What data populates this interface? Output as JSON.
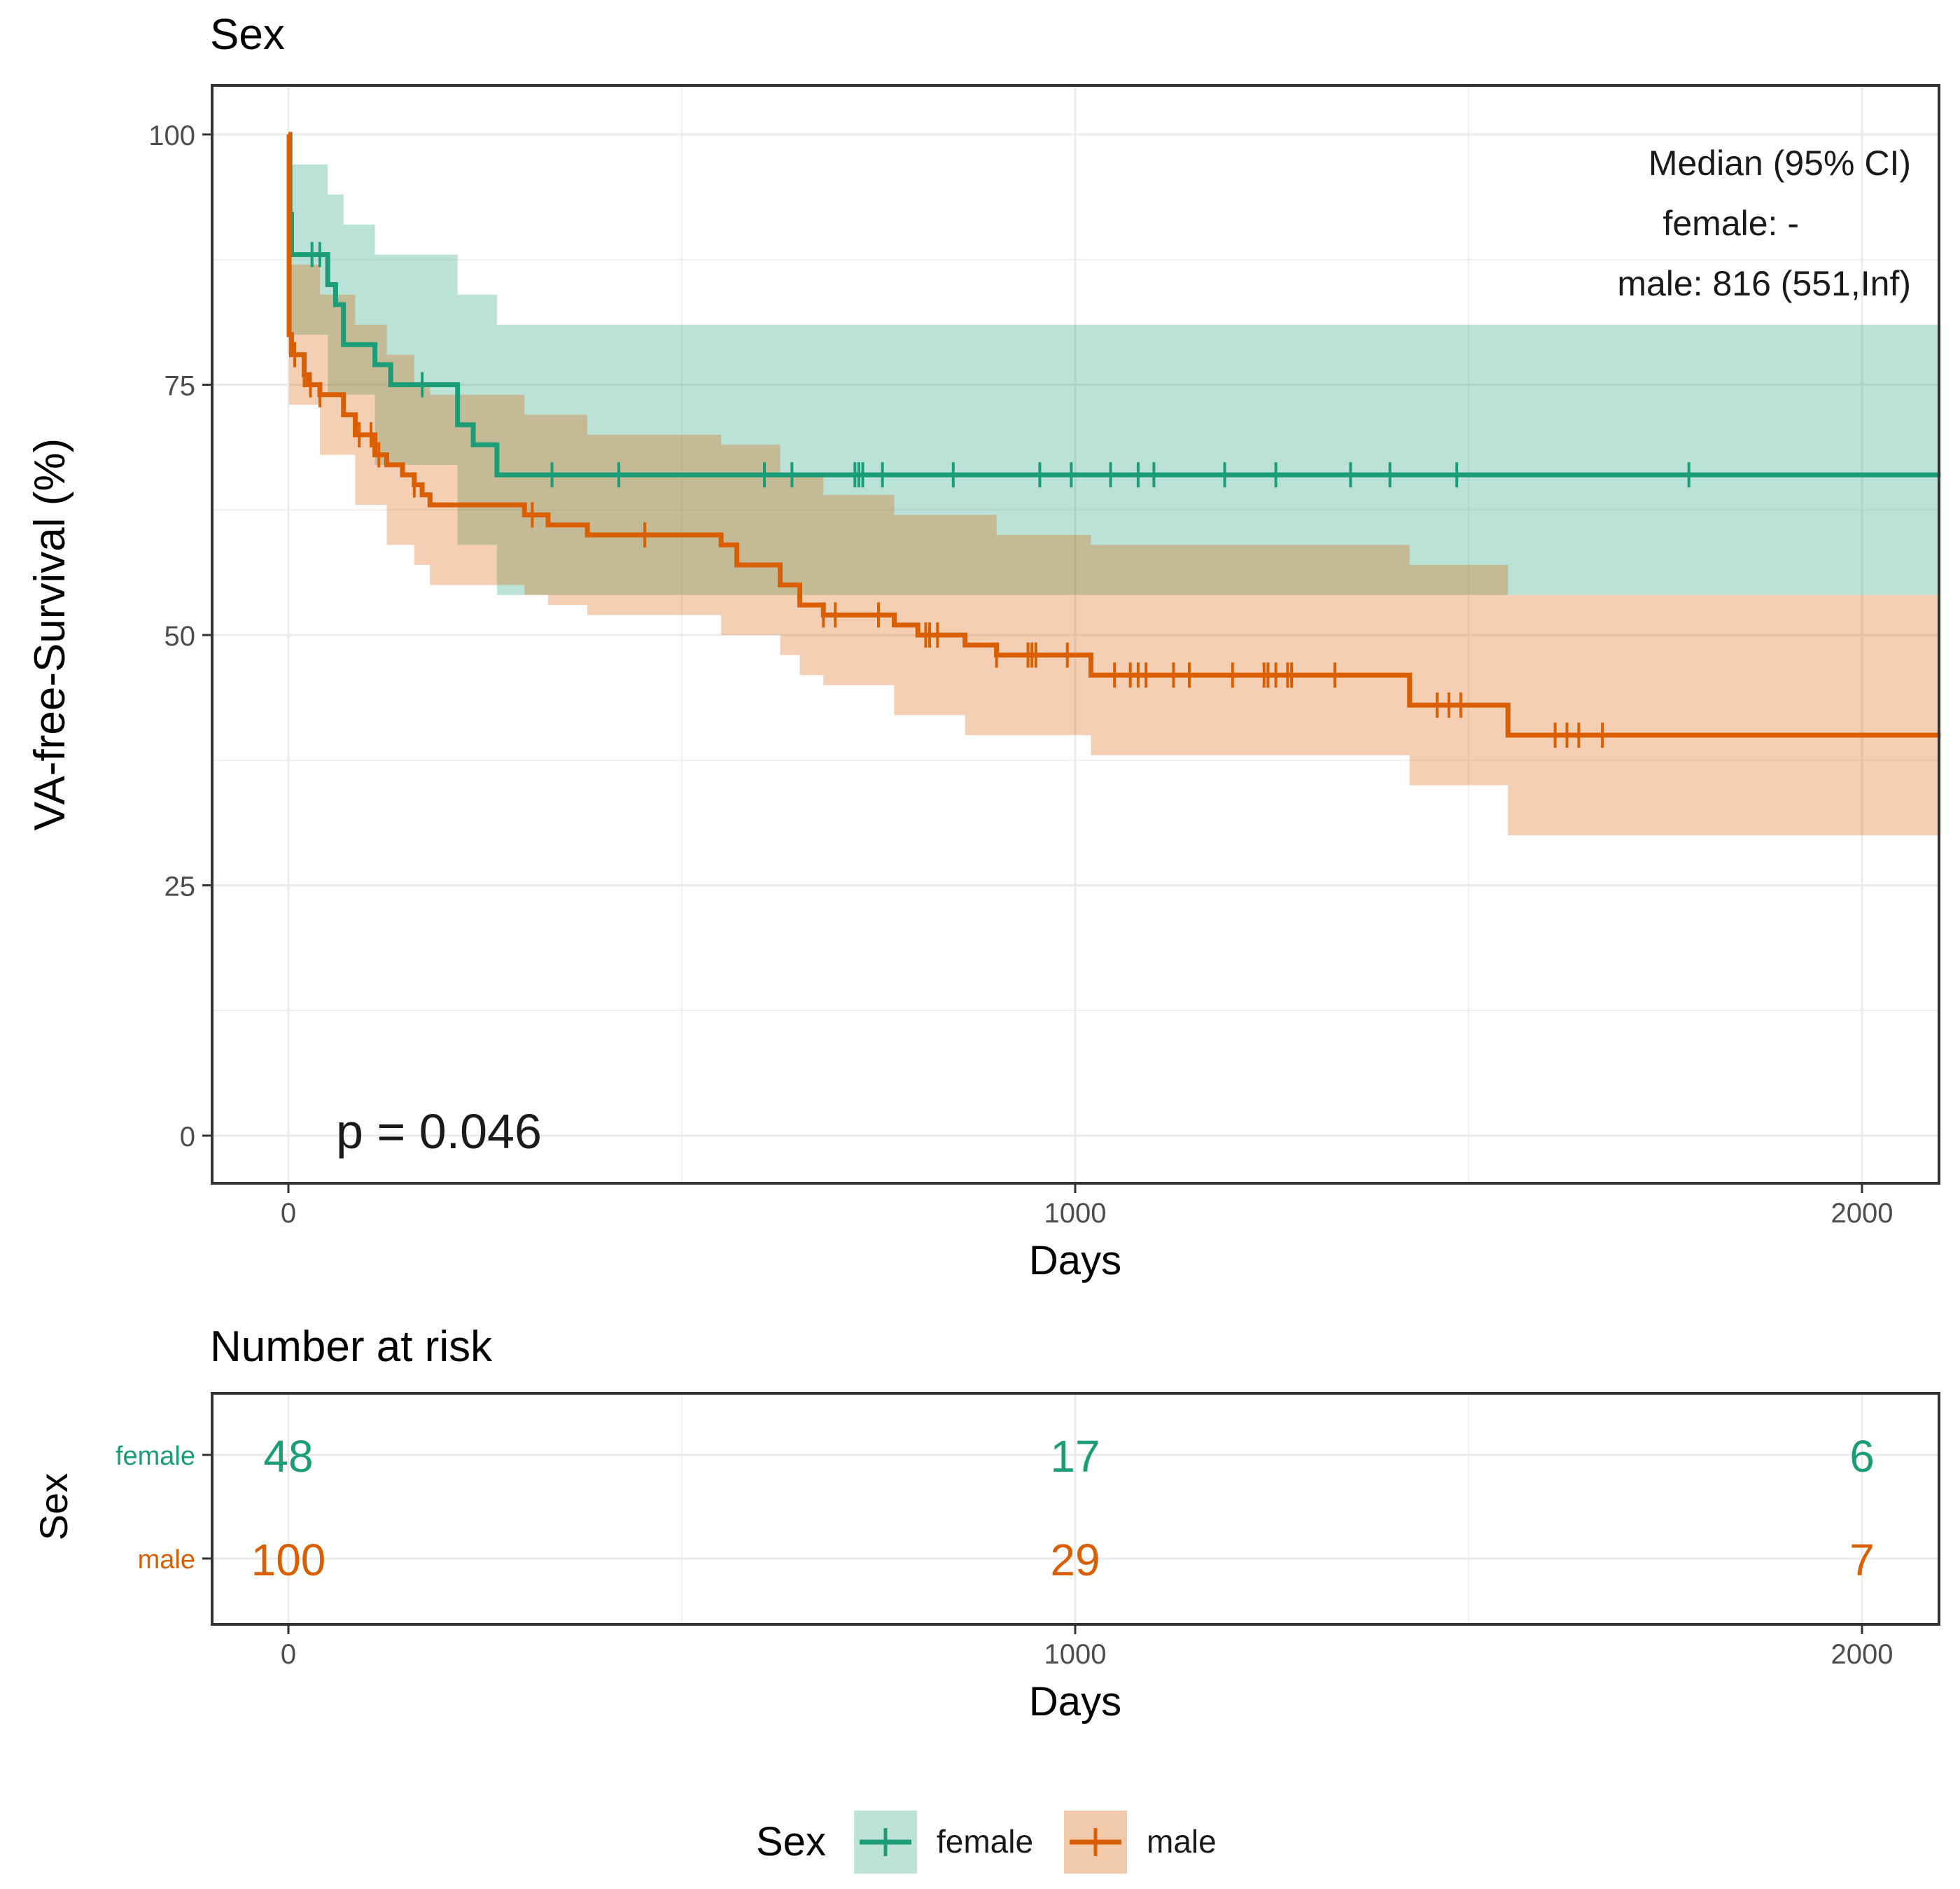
{
  "colors": {
    "female": "#1b9e77",
    "male": "#d95f02",
    "female_band": "#bde3d7",
    "male_band": "#f1c9ab",
    "overlap_band": "#c8b796",
    "grid": "#ebebeb",
    "panel_border": "#333333",
    "axis_text": "#4d4d4d"
  },
  "chart_data": [
    {
      "type": "line",
      "subtype": "kaplan-meier",
      "title": "Sex",
      "xlabel": "Days",
      "ylabel": "VA-free-Survival (%)",
      "xlim": [
        -100,
        2100
      ],
      "ylim": [
        -5,
        105
      ],
      "x_ticks": [
        0,
        1000,
        2000
      ],
      "y_ticks": [
        0,
        25,
        50,
        75,
        100
      ],
      "grid": true,
      "annotation": {
        "heading": "Median (95% CI)",
        "lines": [
          "female: -",
          "male: 816 (551,Inf)"
        ]
      },
      "pvalue": "p = 0.046",
      "series": [
        {
          "name": "female",
          "color_key": "female",
          "steps": [
            [
              0,
              100
            ],
            [
              2,
              92
            ],
            [
              4,
              88
            ],
            [
              50,
              85
            ],
            [
              60,
              83
            ],
            [
              70,
              79
            ],
            [
              110,
              77
            ],
            [
              130,
              75
            ],
            [
              215,
              71
            ],
            [
              235,
              69
            ],
            [
              265,
              66
            ],
            [
              2100,
              66
            ]
          ],
          "ci_upper": [
            [
              0,
              100
            ],
            [
              2,
              97
            ],
            [
              50,
              94
            ],
            [
              70,
              91
            ],
            [
              110,
              88
            ],
            [
              215,
              84
            ],
            [
              265,
              81
            ],
            [
              2100,
              81
            ]
          ],
          "ci_lower": [
            [
              0,
              80
            ],
            [
              50,
              74
            ],
            [
              110,
              67
            ],
            [
              215,
              59
            ],
            [
              265,
              54
            ],
            [
              1550,
              54
            ],
            [
              2100,
              54
            ]
          ],
          "censor_times": [
            30,
            40,
            170,
            335,
            420,
            605,
            640,
            720,
            725,
            730,
            755,
            845,
            955,
            995,
            1045,
            1080,
            1100,
            1190,
            1255,
            1350,
            1400,
            1485,
            1780
          ]
        },
        {
          "name": "male",
          "color_key": "male",
          "steps": [
            [
              0,
              100
            ],
            [
              1,
              80
            ],
            [
              4,
              78
            ],
            [
              20,
              76
            ],
            [
              25,
              75
            ],
            [
              40,
              74
            ],
            [
              70,
              72
            ],
            [
              85,
              70
            ],
            [
              110,
              68
            ],
            [
              125,
              67
            ],
            [
              145,
              66
            ],
            [
              160,
              65
            ],
            [
              170,
              64
            ],
            [
              180,
              63
            ],
            [
              300,
              62
            ],
            [
              330,
              61
            ],
            [
              380,
              60
            ],
            [
              550,
              59
            ],
            [
              570,
              57
            ],
            [
              625,
              55
            ],
            [
              650,
              53
            ],
            [
              680,
              52
            ],
            [
              770,
              51
            ],
            [
              800,
              50
            ],
            [
              860,
              49
            ],
            [
              900,
              48
            ],
            [
              1020,
              46
            ],
            [
              1425,
              43
            ],
            [
              1550,
              40
            ],
            [
              2100,
              40
            ]
          ],
          "ci_upper": [
            [
              0,
              100
            ],
            [
              1,
              87
            ],
            [
              40,
              84
            ],
            [
              85,
              81
            ],
            [
              125,
              78
            ],
            [
              160,
              75
            ],
            [
              180,
              74
            ],
            [
              300,
              72
            ],
            [
              380,
              70
            ],
            [
              550,
              69
            ],
            [
              625,
              66
            ],
            [
              680,
              64
            ],
            [
              770,
              62
            ],
            [
              900,
              60
            ],
            [
              1020,
              59
            ],
            [
              1425,
              57
            ],
            [
              1550,
              54
            ],
            [
              2100,
              54
            ]
          ],
          "ci_lower": [
            [
              0,
              78
            ],
            [
              1,
              73
            ],
            [
              40,
              68
            ],
            [
              85,
              63
            ],
            [
              125,
              59
            ],
            [
              160,
              57
            ],
            [
              180,
              55
            ],
            [
              300,
              54
            ],
            [
              330,
              53
            ],
            [
              380,
              52
            ],
            [
              550,
              50
            ],
            [
              625,
              48
            ],
            [
              650,
              46
            ],
            [
              680,
              45
            ],
            [
              770,
              42
            ],
            [
              860,
              40
            ],
            [
              1020,
              38
            ],
            [
              1425,
              35
            ],
            [
              1550,
              30
            ],
            [
              2100,
              30
            ]
          ],
          "censor_times": [
            8,
            20,
            28,
            40,
            90,
            105,
            115,
            160,
            310,
            453,
            680,
            695,
            750,
            810,
            815,
            825,
            900,
            940,
            945,
            950,
            990,
            1050,
            1070,
            1080,
            1090,
            1125,
            1145,
            1200,
            1240,
            1245,
            1255,
            1270,
            1275,
            1330,
            1460,
            1475,
            1490,
            1610,
            1625,
            1640,
            1670
          ]
        }
      ]
    },
    {
      "type": "table",
      "title": "Number at risk",
      "xlabel": "Days",
      "ylabel": "Sex",
      "x_ticks": [
        0,
        1000,
        2000
      ],
      "rows": [
        {
          "name": "female",
          "color_key": "female",
          "x": [
            0,
            1000,
            2000
          ],
          "values": [
            "48",
            "17",
            "6"
          ]
        },
        {
          "name": "male",
          "color_key": "male",
          "x": [
            0,
            1000,
            2000
          ],
          "values": [
            "100",
            "29",
            "7"
          ]
        }
      ]
    }
  ],
  "legend": {
    "title": "Sex",
    "items": [
      {
        "label": "female",
        "color_key": "female",
        "band_key": "female_band"
      },
      {
        "label": "male",
        "color_key": "male",
        "band_key": "male_band"
      }
    ]
  }
}
